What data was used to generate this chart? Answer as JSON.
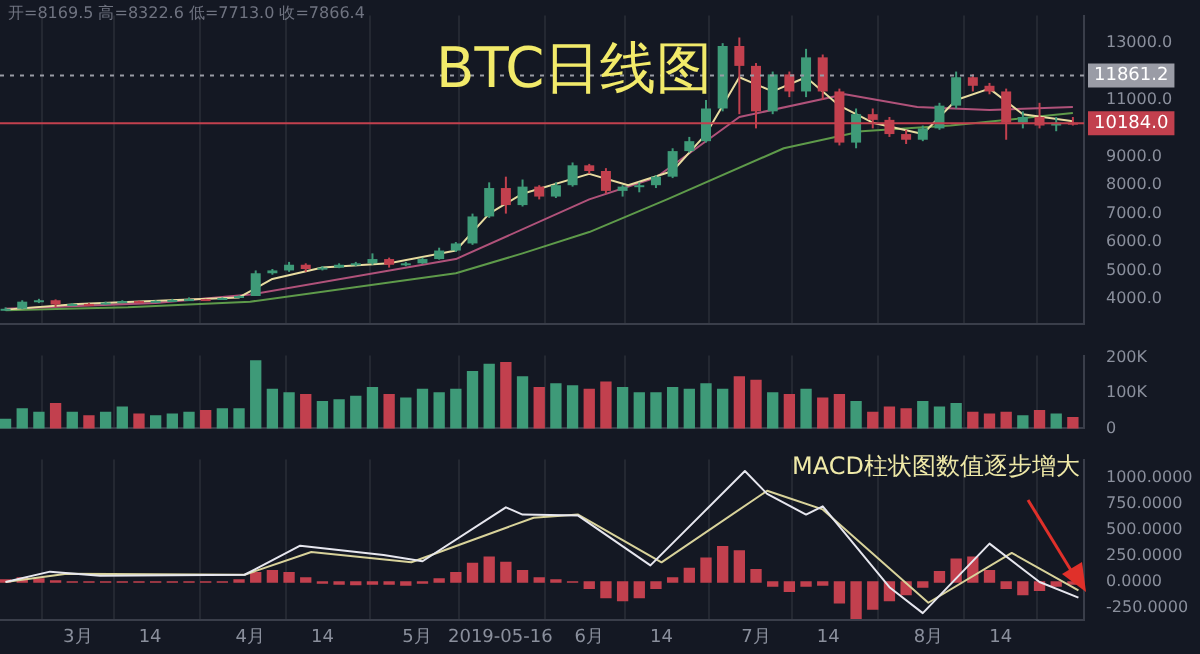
{
  "chart_data": [
    {
      "type": "candlestick",
      "title": "BTC日线图",
      "annotations": [
        "开=8169.5 高=8322.6 低=7713.0 收=7866.4"
      ],
      "x": [
        "2019-02-16",
        "2019-02-19",
        "2019-02-22",
        "2019-02-25",
        "2019-02-28",
        "2019-03-03",
        "2019-03-06",
        "2019-03-09",
        "2019-03-12",
        "2019-03-15",
        "2019-03-18",
        "2019-03-21",
        "2019-03-24",
        "2019-03-27",
        "2019-03-30",
        "2019-04-02",
        "2019-04-05",
        "2019-04-08",
        "2019-04-11",
        "2019-04-14",
        "2019-04-17",
        "2019-04-20",
        "2019-04-23",
        "2019-04-26",
        "2019-04-29",
        "2019-05-02",
        "2019-05-05",
        "2019-05-08",
        "2019-05-11",
        "2019-05-14",
        "2019-05-17",
        "2019-05-20",
        "2019-05-23",
        "2019-05-26",
        "2019-05-29",
        "2019-06-01",
        "2019-06-04",
        "2019-06-07",
        "2019-06-10",
        "2019-06-13",
        "2019-06-16",
        "2019-06-19",
        "2019-06-22",
        "2019-06-25",
        "2019-06-28",
        "2019-07-01",
        "2019-07-04",
        "2019-07-07",
        "2019-07-10",
        "2019-07-13",
        "2019-07-16",
        "2019-07-19",
        "2019-07-22",
        "2019-07-25",
        "2019-07-28",
        "2019-07-31",
        "2019-08-03",
        "2019-08-06",
        "2019-08-09",
        "2019-08-12",
        "2019-08-15",
        "2019-08-18",
        "2019-08-21",
        "2019-08-24",
        "2019-08-27"
      ],
      "ohlc": [
        [
          3600,
          3700,
          3580,
          3650
        ],
        [
          3650,
          3950,
          3640,
          3900
        ],
        [
          3900,
          4000,
          3850,
          3950
        ],
        [
          3950,
          3980,
          3700,
          3800
        ],
        [
          3800,
          3850,
          3780,
          3820
        ],
        [
          3820,
          3850,
          3780,
          3810
        ],
        [
          3810,
          3900,
          3790,
          3870
        ],
        [
          3870,
          3950,
          3850,
          3920
        ],
        [
          3920,
          3940,
          3850,
          3880
        ],
        [
          3880,
          3950,
          3870,
          3930
        ],
        [
          3930,
          4000,
          3900,
          3960
        ],
        [
          3960,
          4050,
          3950,
          3990
        ],
        [
          3990,
          4000,
          3950,
          3970
        ],
        [
          3970,
          4050,
          3960,
          4030
        ],
        [
          4030,
          4120,
          4020,
          4100
        ],
        [
          4100,
          5000,
          4100,
          4900
        ],
        [
          4900,
          5050,
          4850,
          5000
        ],
        [
          5000,
          5300,
          4950,
          5200
        ],
        [
          5200,
          5250,
          4950,
          5050
        ],
        [
          5050,
          5150,
          5000,
          5100
        ],
        [
          5100,
          5250,
          5080,
          5200
        ],
        [
          5200,
          5300,
          5150,
          5250
        ],
        [
          5250,
          5600,
          5200,
          5400
        ],
        [
          5400,
          5450,
          5100,
          5200
        ],
        [
          5200,
          5300,
          5150,
          5250
        ],
        [
          5250,
          5450,
          5230,
          5400
        ],
        [
          5400,
          5800,
          5380,
          5700
        ],
        [
          5700,
          6000,
          5650,
          5950
        ],
        [
          5950,
          7000,
          5900,
          6900
        ],
        [
          6900,
          8100,
          6850,
          7900
        ],
        [
          7900,
          8300,
          7000,
          7300
        ],
        [
          7300,
          8200,
          7250,
          7950
        ],
        [
          7950,
          8000,
          7500,
          7600
        ],
        [
          7600,
          8100,
          7550,
          8000
        ],
        [
          8000,
          8800,
          7950,
          8700
        ],
        [
          8700,
          8750,
          8400,
          8500
        ],
        [
          8500,
          8600,
          7700,
          7800
        ],
        [
          7800,
          8000,
          7600,
          7950
        ],
        [
          7950,
          8100,
          7750,
          8000
        ],
        [
          8000,
          8350,
          7900,
          8300
        ],
        [
          8300,
          9300,
          8250,
          9200
        ],
        [
          9200,
          9700,
          9150,
          9550
        ],
        [
          9550,
          11000,
          9500,
          10700
        ],
        [
          10700,
          13000,
          10600,
          12900
        ],
        [
          12900,
          13200,
          10500,
          12200
        ],
        [
          12200,
          12300,
          10000,
          10600
        ],
        [
          10600,
          12000,
          10500,
          11900
        ],
        [
          11900,
          12000,
          11100,
          11300
        ],
        [
          11300,
          12800,
          11100,
          12500
        ],
        [
          12500,
          12600,
          11000,
          11300
        ],
        [
          11300,
          11400,
          9400,
          9500
        ],
        [
          9500,
          10700,
          9300,
          10500
        ],
        [
          10500,
          10700,
          10000,
          10300
        ],
        [
          10300,
          10400,
          9700,
          9800
        ],
        [
          9800,
          9950,
          9450,
          9600
        ],
        [
          9600,
          10100,
          9550,
          10000
        ],
        [
          10000,
          10900,
          9950,
          10800
        ],
        [
          10800,
          12000,
          10700,
          11800
        ],
        [
          11800,
          11900,
          11300,
          11500
        ],
        [
          11500,
          11600,
          11200,
          11300
        ],
        [
          11300,
          11400,
          9600,
          10200
        ],
        [
          10200,
          10600,
          10000,
          10400
        ],
        [
          10400,
          10900,
          10000,
          10100
        ],
        [
          10100,
          10400,
          9900,
          10200
        ],
        [
          10200,
          10400,
          10100,
          10184
        ]
      ],
      "colors": [
        "#3e9a78",
        "#3e9a78",
        "#3e9a78",
        "#c2404e",
        "#3e9a78",
        "#c2404e",
        "#3e9a78",
        "#3e9a78",
        "#c2404e",
        "#3e9a78",
        "#3e9a78",
        "#3e9a78",
        "#c2404e",
        "#3e9a78",
        "#3e9a78",
        "#3e9a78",
        "#3e9a78",
        "#3e9a78",
        "#c2404e",
        "#3e9a78",
        "#3e9a78",
        "#3e9a78",
        "#3e9a78",
        "#c2404e",
        "#3e9a78",
        "#3e9a78",
        "#3e9a78",
        "#3e9a78",
        "#3e9a78",
        "#3e9a78",
        "#c2404e",
        "#3e9a78",
        "#c2404e",
        "#3e9a78",
        "#3e9a78",
        "#c2404e",
        "#c2404e",
        "#3e9a78",
        "#3e9a78",
        "#3e9a78",
        "#3e9a78",
        "#3e9a78",
        "#3e9a78",
        "#3e9a78",
        "#c2404e",
        "#c2404e",
        "#3e9a78",
        "#c2404e",
        "#3e9a78",
        "#c2404e",
        "#c2404e",
        "#3e9a78",
        "#c2404e",
        "#c2404e",
        "#c2404e",
        "#3e9a78",
        "#3e9a78",
        "#3e9a78",
        "#c2404e",
        "#c2404e",
        "#c2404e",
        "#3e9a78",
        "#c2404e",
        "#3e9a78",
        "#c2404e"
      ],
      "series": [
        {
          "type": "line",
          "color": "#e8dca0",
          "x": [
            "2019-02-16",
            "2019-03-01",
            "2019-03-30",
            "2019-04-05",
            "2019-04-14",
            "2019-04-26",
            "2019-05-08",
            "2019-05-14",
            "2019-05-20",
            "2019-06-01",
            "2019-06-08",
            "2019-06-16",
            "2019-06-22",
            "2019-06-28",
            "2019-07-04",
            "2019-07-10",
            "2019-07-16",
            "2019-07-22",
            "2019-07-31",
            "2019-08-06",
            "2019-08-12",
            "2019-08-18",
            "2019-08-27"
          ],
          "values": [
            3620,
            3820,
            4050,
            4700,
            5100,
            5250,
            5700,
            7000,
            7700,
            8400,
            8000,
            8500,
            9800,
            11800,
            11300,
            11800,
            10800,
            10200,
            9800,
            11000,
            11400,
            10500,
            10250
          ]
        },
        {
          "type": "line",
          "color": "#b0527a",
          "x": [
            "2019-02-16",
            "2019-03-15",
            "2019-04-01",
            "2019-05-08",
            "2019-06-01",
            "2019-06-13",
            "2019-06-28",
            "2019-07-17",
            "2019-07-30",
            "2019-08-12",
            "2019-08-27"
          ],
          "values": [
            3650,
            3850,
            4150,
            5400,
            7500,
            8270,
            10400,
            11200,
            10750,
            10650,
            10750
          ]
        },
        {
          "type": "line",
          "color": "#5e9a4a",
          "x": [
            "2019-02-16",
            "2019-03-10",
            "2019-04-01",
            "2019-05-08",
            "2019-05-20",
            "2019-06-01",
            "2019-06-15",
            "2019-07-06",
            "2019-07-20",
            "2019-08-05",
            "2019-08-27"
          ],
          "values": [
            3600,
            3700,
            3900,
            4900,
            5600,
            6350,
            7500,
            9300,
            9900,
            10100,
            10540
          ]
        }
      ],
      "xlim": [
        "2019-02-15",
        "2019-08-29"
      ],
      "ylim": [
        3100,
        13970
      ],
      "xticks": [
        {
          "value": "2019-03-01",
          "label": null
        },
        {
          "value": "2019-03-14",
          "label": null
        },
        {
          "value": "2019-04-01",
          "label": null
        },
        {
          "value": "2019-04-14",
          "label": null
        },
        {
          "value": "2019-05-01",
          "label": null
        },
        {
          "value": "2019-05-16",
          "label": null
        },
        {
          "value": "2019-06-01",
          "label": null
        },
        {
          "value": "2019-06-14",
          "label": null
        },
        {
          "value": "2019-07-01",
          "label": null
        },
        {
          "value": "2019-07-14",
          "label": null
        },
        {
          "value": "2019-08-01",
          "label": null
        },
        {
          "value": "2019-08-14",
          "label": null
        }
      ],
      "yticks": [
        {
          "value": 4000,
          "label": "4000.0"
        },
        {
          "value": 5000,
          "label": "5000.0"
        },
        {
          "value": 6000,
          "label": "6000.0"
        },
        {
          "value": 7000,
          "label": "7000.0"
        },
        {
          "value": 8000,
          "label": "8000.0"
        },
        {
          "value": 9000,
          "label": "9000.0"
        },
        {
          "value": 11000,
          "label": "11000.0"
        },
        {
          "value": 13000,
          "label": "13000.0"
        }
      ],
      "ref_lines": [
        {
          "axis": "y",
          "value": 11861.2,
          "label": "11861.2",
          "color": "#9a9ca6",
          "line_style": "dotted"
        },
        {
          "axis": "y",
          "value": 10184.0,
          "label": "10184.0",
          "color": "#c2404e",
          "line_style": "solid"
        }
      ],
      "grid": "x",
      "tick_labels": "y",
      "legend": false
    },
    {
      "type": "bar",
      "x": [
        "2019-02-16",
        "2019-02-19",
        "2019-02-22",
        "2019-02-25",
        "2019-02-28",
        "2019-03-03",
        "2019-03-06",
        "2019-03-09",
        "2019-03-12",
        "2019-03-15",
        "2019-03-18",
        "2019-03-21",
        "2019-03-24",
        "2019-03-27",
        "2019-03-30",
        "2019-04-02",
        "2019-04-05",
        "2019-04-08",
        "2019-04-11",
        "2019-04-14",
        "2019-04-17",
        "2019-04-20",
        "2019-04-23",
        "2019-04-26",
        "2019-04-29",
        "2019-05-02",
        "2019-05-05",
        "2019-05-08",
        "2019-05-11",
        "2019-05-14",
        "2019-05-17",
        "2019-05-20",
        "2019-05-23",
        "2019-05-26",
        "2019-05-29",
        "2019-06-01",
        "2019-06-04",
        "2019-06-07",
        "2019-06-10",
        "2019-06-13",
        "2019-06-16",
        "2019-06-19",
        "2019-06-22",
        "2019-06-25",
        "2019-06-28",
        "2019-07-01",
        "2019-07-04",
        "2019-07-07",
        "2019-07-10",
        "2019-07-13",
        "2019-07-16",
        "2019-07-19",
        "2019-07-22",
        "2019-07-25",
        "2019-07-28",
        "2019-07-31",
        "2019-08-03",
        "2019-08-06",
        "2019-08-09",
        "2019-08-12",
        "2019-08-15",
        "2019-08-18",
        "2019-08-21",
        "2019-08-24",
        "2019-08-27"
      ],
      "values": [
        25000,
        55000,
        45000,
        70000,
        45000,
        35000,
        45000,
        60000,
        40000,
        35000,
        40000,
        45000,
        50000,
        55000,
        55000,
        190000,
        110000,
        100000,
        95000,
        75000,
        80000,
        90000,
        115000,
        95000,
        85000,
        110000,
        100000,
        110000,
        160000,
        180000,
        185000,
        145000,
        115000,
        125000,
        120000,
        110000,
        130000,
        115000,
        100000,
        100000,
        115000,
        110000,
        125000,
        110000,
        145000,
        135000,
        100000,
        95000,
        110000,
        85000,
        95000,
        75000,
        45000,
        60000,
        55000,
        75000,
        60000,
        70000,
        45000,
        40000,
        45000,
        35000,
        50000,
        40000,
        30000
      ],
      "colors": [
        "#3e9a78",
        "#3e9a78",
        "#3e9a78",
        "#c2404e",
        "#3e9a78",
        "#c2404e",
        "#3e9a78",
        "#3e9a78",
        "#c2404e",
        "#3e9a78",
        "#3e9a78",
        "#3e9a78",
        "#c2404e",
        "#3e9a78",
        "#3e9a78",
        "#3e9a78",
        "#3e9a78",
        "#3e9a78",
        "#c2404e",
        "#3e9a78",
        "#3e9a78",
        "#3e9a78",
        "#3e9a78",
        "#c2404e",
        "#3e9a78",
        "#3e9a78",
        "#3e9a78",
        "#3e9a78",
        "#3e9a78",
        "#3e9a78",
        "#c2404e",
        "#3e9a78",
        "#c2404e",
        "#3e9a78",
        "#3e9a78",
        "#c2404e",
        "#c2404e",
        "#3e9a78",
        "#3e9a78",
        "#3e9a78",
        "#3e9a78",
        "#3e9a78",
        "#3e9a78",
        "#3e9a78",
        "#c2404e",
        "#c2404e",
        "#3e9a78",
        "#c2404e",
        "#3e9a78",
        "#c2404e",
        "#c2404e",
        "#3e9a78",
        "#c2404e",
        "#c2404e",
        "#c2404e",
        "#3e9a78",
        "#3e9a78",
        "#3e9a78",
        "#c2404e",
        "#c2404e",
        "#c2404e",
        "#3e9a78",
        "#c2404e",
        "#3e9a78",
        "#c2404e"
      ],
      "xlim": [
        "2019-02-15",
        "2019-08-29"
      ],
      "ylim": [
        0,
        205000
      ],
      "xticks": [
        {
          "value": "2019-03-01",
          "label": null
        },
        {
          "value": "2019-03-14",
          "label": null
        },
        {
          "value": "2019-04-01",
          "label": null
        },
        {
          "value": "2019-04-14",
          "label": null
        },
        {
          "value": "2019-05-01",
          "label": null
        },
        {
          "value": "2019-05-16",
          "label": null
        },
        {
          "value": "2019-06-01",
          "label": null
        },
        {
          "value": "2019-06-14",
          "label": null
        },
        {
          "value": "2019-07-01",
          "label": null
        },
        {
          "value": "2019-07-14",
          "label": null
        },
        {
          "value": "2019-08-01",
          "label": null
        },
        {
          "value": "2019-08-14",
          "label": null
        }
      ],
      "yticks": [
        0,
        {
          "value": 100000,
          "label": "100K"
        },
        {
          "value": 200000,
          "label": "200K"
        }
      ],
      "grid": "x",
      "tick_labels": "y",
      "legend": false
    },
    {
      "type": "line",
      "annotations": [
        "MACD柱状图数值逐步增大"
      ],
      "series": [
        {
          "type": "line",
          "color": "#e6e6ee",
          "x": [
            "2019-02-16",
            "2019-02-24",
            "2019-03-05",
            "2019-03-31",
            "2019-04-10",
            "2019-04-25",
            "2019-05-02",
            "2019-05-17",
            "2019-05-20",
            "2019-05-30",
            "2019-06-12",
            "2019-06-29",
            "2019-07-03",
            "2019-07-10",
            "2019-07-13",
            "2019-07-25",
            "2019-07-31",
            "2019-08-12",
            "2019-08-21",
            "2019-08-28"
          ],
          "values": [
            0,
            100,
            60,
            70,
            350,
            260,
            200,
            720,
            650,
            640,
            160,
            1070,
            850,
            650,
            730,
            -50,
            -300,
            370,
            0,
            -150
          ]
        },
        {
          "type": "line",
          "color": "#d8d29a",
          "x": [
            "2019-02-16",
            "2019-02-27",
            "2019-03-31",
            "2019-04-12",
            "2019-04-30",
            "2019-05-22",
            "2019-05-30",
            "2019-06-14",
            "2019-07-03",
            "2019-07-13",
            "2019-08-01",
            "2019-08-16",
            "2019-08-28"
          ],
          "values": [
            0,
            80,
            70,
            290,
            190,
            620,
            650,
            190,
            880,
            700,
            -200,
            280,
            -80
          ]
        },
        {
          "type": "bar",
          "color": "#c2404e",
          "x": [
            "2019-02-16",
            "2019-02-19",
            "2019-02-22",
            "2019-02-25",
            "2019-02-28",
            "2019-03-03",
            "2019-03-06",
            "2019-03-09",
            "2019-03-12",
            "2019-03-15",
            "2019-03-18",
            "2019-03-21",
            "2019-03-24",
            "2019-03-27",
            "2019-03-30",
            "2019-04-02",
            "2019-04-05",
            "2019-04-08",
            "2019-04-11",
            "2019-04-14",
            "2019-04-17",
            "2019-04-20",
            "2019-04-23",
            "2019-04-26",
            "2019-04-29",
            "2019-05-02",
            "2019-05-05",
            "2019-05-08",
            "2019-05-11",
            "2019-05-14",
            "2019-05-17",
            "2019-05-20",
            "2019-05-23",
            "2019-05-26",
            "2019-05-29",
            "2019-06-01",
            "2019-06-04",
            "2019-06-07",
            "2019-06-10",
            "2019-06-13",
            "2019-06-16",
            "2019-06-19",
            "2019-06-22",
            "2019-06-25",
            "2019-06-28",
            "2019-07-01",
            "2019-07-04",
            "2019-07-07",
            "2019-07-10",
            "2019-07-13",
            "2019-07-16",
            "2019-07-19",
            "2019-07-22",
            "2019-07-25",
            "2019-07-28",
            "2019-07-31",
            "2019-08-03",
            "2019-08-06",
            "2019-08-09",
            "2019-08-12",
            "2019-08-15",
            "2019-08-18",
            "2019-08-21",
            "2019-08-24",
            "2019-08-27"
          ],
          "values": [
            20,
            40,
            30,
            10,
            0,
            0,
            0,
            0,
            0,
            0,
            0,
            0,
            0,
            0,
            20,
            90,
            110,
            90,
            40,
            -10,
            -20,
            -25,
            -20,
            -20,
            -30,
            -10,
            30,
            90,
            180,
            240,
            190,
            110,
            40,
            20,
            0,
            -60,
            -150,
            -180,
            -150,
            -60,
            40,
            130,
            230,
            340,
            300,
            120,
            -40,
            -90,
            -40,
            -30,
            -200,
            -350,
            -260,
            -180,
            -120,
            -50,
            100,
            220,
            240,
            110,
            -60,
            -120,
            -80,
            -40,
            -20
          ]
        }
      ],
      "xlim": [
        "2019-02-15",
        "2019-08-29"
      ],
      "ylim": [
        -370,
        1180
      ],
      "xticks": [
        {
          "value": "2019-03-01",
          "label": "3月"
        },
        {
          "value": "2019-03-14",
          "label": "14"
        },
        {
          "value": "2019-04-01",
          "label": "4月"
        },
        {
          "value": "2019-04-14",
          "label": "14"
        },
        {
          "value": "2019-05-01",
          "label": "5月"
        },
        {
          "value": "2019-05-16",
          "label": "2019-05-16"
        },
        {
          "value": "2019-06-01",
          "label": "6月"
        },
        {
          "value": "2019-06-14",
          "label": "14"
        },
        {
          "value": "2019-07-01",
          "label": "7月"
        },
        {
          "value": "2019-07-14",
          "label": "14"
        },
        {
          "value": "2019-08-01",
          "label": "8月"
        },
        {
          "value": "2019-08-14",
          "label": "14"
        }
      ],
      "yticks": [
        {
          "value": -250,
          "label": "-250.0000"
        },
        {
          "value": 0,
          "label": "0.0000"
        },
        {
          "value": 250,
          "label": "250.0000"
        },
        {
          "value": 500,
          "label": "500.0000"
        },
        {
          "value": 750,
          "label": "750.0000"
        },
        {
          "value": 1000,
          "label": "1000.0000"
        }
      ],
      "grid": "x",
      "legend": false
    }
  ]
}
